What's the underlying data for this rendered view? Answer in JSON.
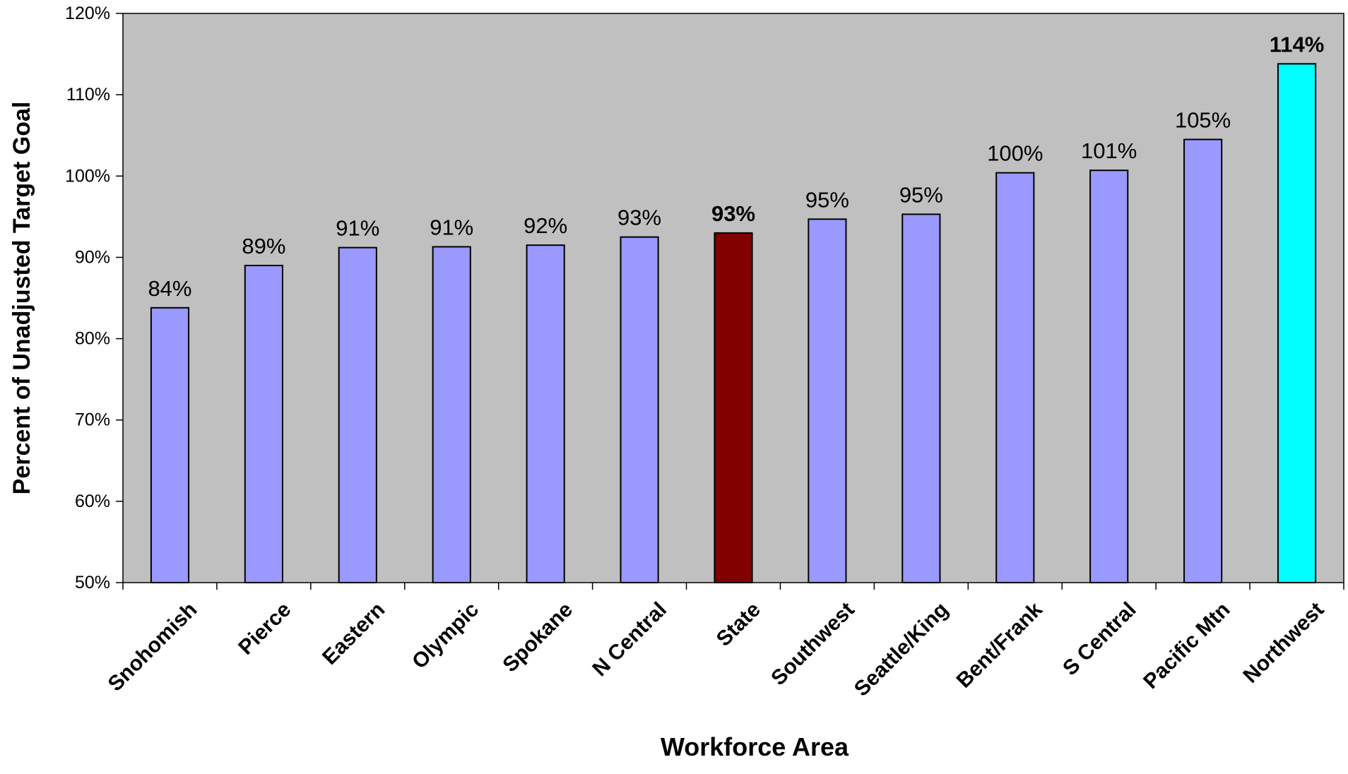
{
  "chart_data": {
    "type": "bar",
    "title": "",
    "xlabel": "Workforce Area",
    "ylabel": "Percent of Unadjusted Target Goal",
    "ylim": [
      50,
      120
    ],
    "y_ticks": [
      "50%",
      "60%",
      "70%",
      "80%",
      "90%",
      "100%",
      "110%",
      "120%"
    ],
    "grid": false,
    "legend": "none",
    "categories": [
      "Snohomish",
      "Pierce",
      "Eastern",
      "Olympic",
      "Spokane",
      "N Central",
      "State",
      "Southwest",
      "Seattle/King",
      "Bent/Frank",
      "S Central",
      "Pacific Mtn",
      "Northwest"
    ],
    "values": [
      83.8,
      89.0,
      91.2,
      91.3,
      91.5,
      92.5,
      93.0,
      94.7,
      95.3,
      100.4,
      100.7,
      104.5,
      113.8
    ],
    "data_labels": [
      "84%",
      "89%",
      "91%",
      "91%",
      "92%",
      "93%",
      "93%",
      "95%",
      "95%",
      "100%",
      "101%",
      "105%",
      "114%"
    ],
    "bar_colors": [
      "#9999ff",
      "#9999ff",
      "#9999ff",
      "#9999ff",
      "#9999ff",
      "#9999ff",
      "#800000",
      "#9999ff",
      "#9999ff",
      "#9999ff",
      "#9999ff",
      "#9999ff",
      "#00ffff"
    ],
    "bold_labels": [
      "State",
      "Northwest"
    ],
    "plot_background": "#c0c0c0"
  }
}
